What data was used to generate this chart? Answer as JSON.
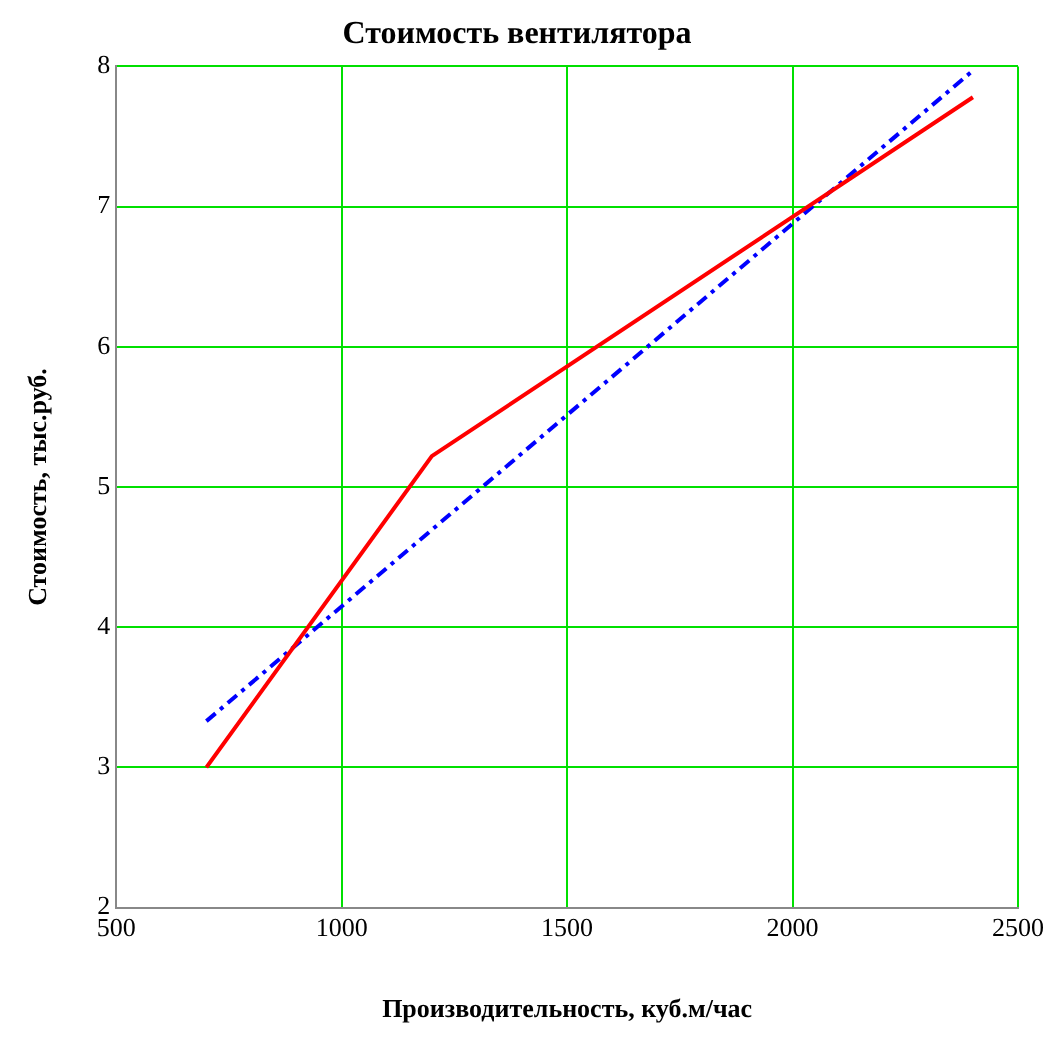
{
  "chart_data": {
    "type": "line",
    "title": "Стоимость вентилятора",
    "xlabel": "Производительность, куб.м/час",
    "ylabel": "Стоимость, тыс.руб.",
    "xlim": [
      500,
      2500
    ],
    "xticks": [
      500,
      1000,
      1500,
      2000,
      2500
    ],
    "ylim": [
      2,
      8
    ],
    "yticks": [
      2,
      3,
      4,
      5,
      6,
      7,
      8
    ],
    "grid": true,
    "legend": false,
    "marker": "none",
    "series": [
      {
        "color": "#ff0000",
        "x": [
          700,
          1200,
          2400
        ],
        "values": [
          3,
          5.22,
          7.78
        ],
        "line_style": "solid"
      },
      {
        "color": "#0000ff",
        "x": [
          700,
          2400
        ],
        "values": [
          3.33,
          7.97
        ],
        "line_style": "dashed"
      }
    ]
  }
}
